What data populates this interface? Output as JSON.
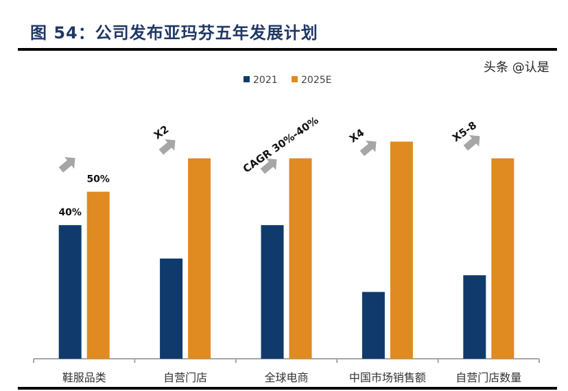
{
  "title": "图 54：公司发布亚玛芬五年发展计划",
  "watermark": "头条 @认是",
  "chart_data": {
    "type": "bar",
    "title": "图 54：公司发布亚玛芬五年发展计划",
    "categories": [
      "鞋服品类",
      "自营门店",
      "全球电商",
      "中国市场销售额",
      "自营门店数量"
    ],
    "series": [
      {
        "name": "2021",
        "color": "#0f3a6b",
        "values": [
          40,
          30,
          40,
          20,
          25
        ]
      },
      {
        "name": "2025E",
        "color": "#e08a22",
        "values": [
          50,
          60,
          60,
          65,
          60
        ]
      }
    ],
    "data_labels": [
      {
        "category": 0,
        "series": 0,
        "text": "40%"
      },
      {
        "category": 0,
        "series": 1,
        "text": "50%"
      }
    ],
    "annotations": [
      "",
      "X2",
      "CAGR 30%-40%",
      "X4",
      "X5-8"
    ],
    "arrow_color": "#a6a6a6",
    "legend_position": "top",
    "grid": false,
    "ylim": [
      0,
      75
    ]
  }
}
